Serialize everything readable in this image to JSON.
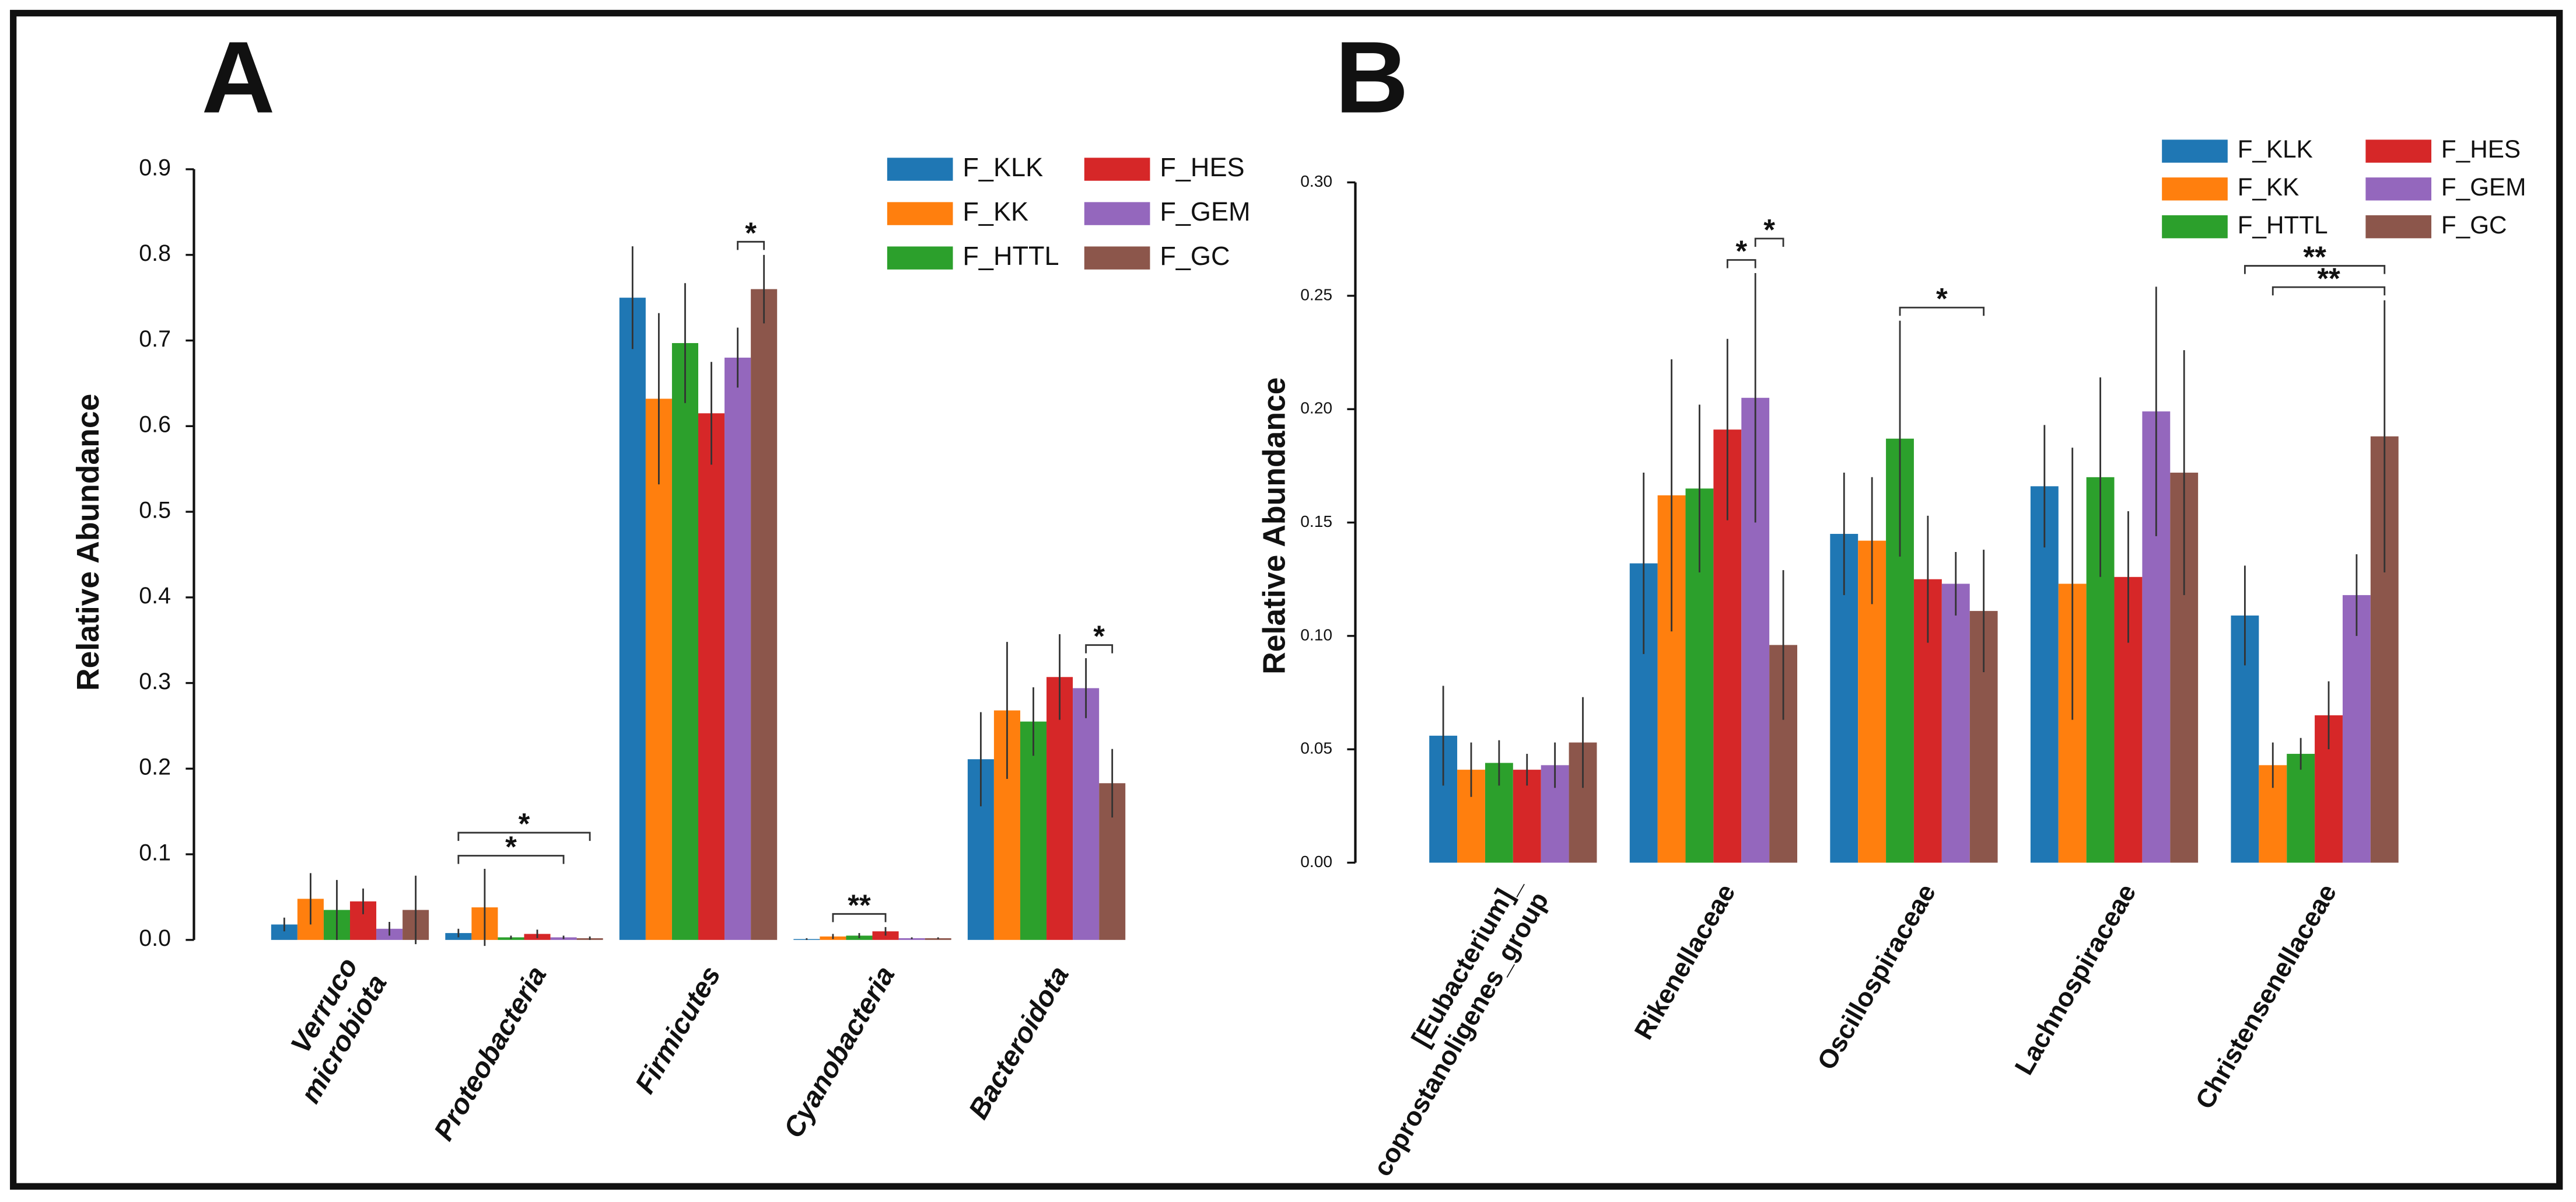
{
  "chart_data": [
    {
      "type": "bar",
      "panel": "A",
      "y_label": "Relative Abundance",
      "categories": [
        "Verruco\nmicrobiota",
        "Proteobacteria",
        "Firmicutes",
        "Cyanobacteria",
        "Bacteroidota"
      ],
      "ylim": [
        0,
        0.9
      ],
      "yticks": [
        {
          "value": 0,
          "label": "0.0"
        },
        0.1,
        0.2,
        0.3,
        0.4,
        0.5,
        0.6,
        0.7,
        0.8,
        0.9
      ],
      "series": [
        {
          "name": "F_KLK",
          "color": "#1f77b4",
          "values": [
            0.018,
            0.008,
            0.75,
            0.001,
            0.211
          ],
          "errors": [
            0.008,
            0.005,
            0.06,
            0.001,
            0.055
          ]
        },
        {
          "name": "F_KK",
          "color": "#ff7f0e",
          "values": [
            0.048,
            0.038,
            0.632,
            0.004,
            0.268
          ],
          "errors": [
            0.03,
            0.045,
            0.1,
            0.003,
            0.08
          ]
        },
        {
          "name": "F_HTTL",
          "color": "#2ca02c",
          "values": [
            0.035,
            0.003,
            0.697,
            0.005,
            0.255
          ],
          "errors": [
            0.035,
            0.002,
            0.07,
            0.003,
            0.04
          ]
        },
        {
          "name": "F_HES",
          "color": "#d62728",
          "values": [
            0.045,
            0.007,
            0.615,
            0.01,
            0.307
          ],
          "errors": [
            0.015,
            0.005,
            0.06,
            0.005,
            0.05
          ]
        },
        {
          "name": "F_GEM",
          "color": "#9467bd",
          "values": [
            0.013,
            0.003,
            0.68,
            0.002,
            0.294
          ],
          "errors": [
            0.008,
            0.002,
            0.035,
            0.001,
            0.035
          ]
        },
        {
          "name": "F_GC",
          "color": "#8c564b",
          "values": [
            0.035,
            0.002,
            0.76,
            0.002,
            0.183
          ],
          "errors": [
            0.04,
            0.002,
            0.04,
            0.001,
            0.04
          ]
        }
      ],
      "annotations": [
        {
          "text": "*",
          "category": "Proteobacteria",
          "between": [
            "F_KLK",
            "F_GEM"
          ]
        },
        {
          "text": "*",
          "category": "Proteobacteria",
          "between": [
            "F_KLK",
            "F_GC"
          ]
        },
        {
          "text": "*",
          "category": "Firmicutes",
          "between": [
            "F_GEM",
            "F_GC"
          ]
        },
        {
          "text": "**",
          "category": "Cyanobacteria",
          "between": [
            "F_KK",
            "F_HES"
          ]
        },
        {
          "text": "*",
          "category": "Bacteroidota",
          "between": [
            "F_GEM",
            "F_GC"
          ]
        }
      ]
    },
    {
      "type": "bar",
      "panel": "B",
      "y_label": "Relative Abundance",
      "categories": [
        "[Eubacterium]_\ncoprostanoligenes_group",
        "Rikenellaceae",
        "Oscillospiraceae",
        "Lachnospiraceae",
        "Christensenellaceae"
      ],
      "ylim": [
        0,
        0.3
      ],
      "yticks": [
        {
          "value": 0,
          "label": "0.00"
        },
        {
          "value": 0.05,
          "label": "0.05"
        },
        {
          "value": 0.1,
          "label": "0.10"
        },
        {
          "value": 0.15,
          "label": "0.15"
        },
        {
          "value": 0.2,
          "label": "0.20"
        },
        {
          "value": 0.25,
          "label": "0.25"
        },
        {
          "value": 0.3,
          "label": "0.30"
        }
      ],
      "series": [
        {
          "name": "F_KLK",
          "color": "#1f77b4",
          "values": [
            0.056,
            0.132,
            0.145,
            0.166,
            0.109
          ],
          "errors": [
            0.022,
            0.04,
            0.027,
            0.027,
            0.022
          ]
        },
        {
          "name": "F_KK",
          "color": "#ff7f0e",
          "values": [
            0.041,
            0.162,
            0.142,
            0.123,
            0.043
          ],
          "errors": [
            0.012,
            0.06,
            0.028,
            0.06,
            0.01
          ]
        },
        {
          "name": "F_HTTL",
          "color": "#2ca02c",
          "values": [
            0.044,
            0.165,
            0.187,
            0.17,
            0.048
          ],
          "errors": [
            0.01,
            0.037,
            0.052,
            0.044,
            0.007
          ]
        },
        {
          "name": "F_HES",
          "color": "#d62728",
          "values": [
            0.041,
            0.191,
            0.125,
            0.126,
            0.065
          ],
          "errors": [
            0.007,
            0.04,
            0.028,
            0.029,
            0.015
          ]
        },
        {
          "name": "F_GEM",
          "color": "#9467bd",
          "values": [
            0.043,
            0.205,
            0.123,
            0.199,
            0.118
          ],
          "errors": [
            0.01,
            0.055,
            0.014,
            0.055,
            0.018
          ]
        },
        {
          "name": "F_GC",
          "color": "#8c564b",
          "values": [
            0.053,
            0.096,
            0.111,
            0.172,
            0.188
          ],
          "errors": [
            0.02,
            0.033,
            0.027,
            0.054,
            0.06
          ]
        }
      ],
      "annotations": [
        {
          "text": "*",
          "category": "Rikenellaceae",
          "between": [
            "F_HES",
            "F_GEM"
          ]
        },
        {
          "text": "*",
          "category": "Rikenellaceae",
          "between": [
            "F_GEM",
            "F_GC"
          ]
        },
        {
          "text": "*",
          "category": "Oscillospiraceae",
          "between": [
            "F_HTTL",
            "F_GC"
          ]
        },
        {
          "text": "**",
          "category": "Christensenellaceae",
          "between": [
            "F_KK",
            "F_GC"
          ]
        },
        {
          "text": "**",
          "category": "Christensenellaceae",
          "between": [
            "F_KLK",
            "F_GC"
          ]
        }
      ]
    }
  ]
}
